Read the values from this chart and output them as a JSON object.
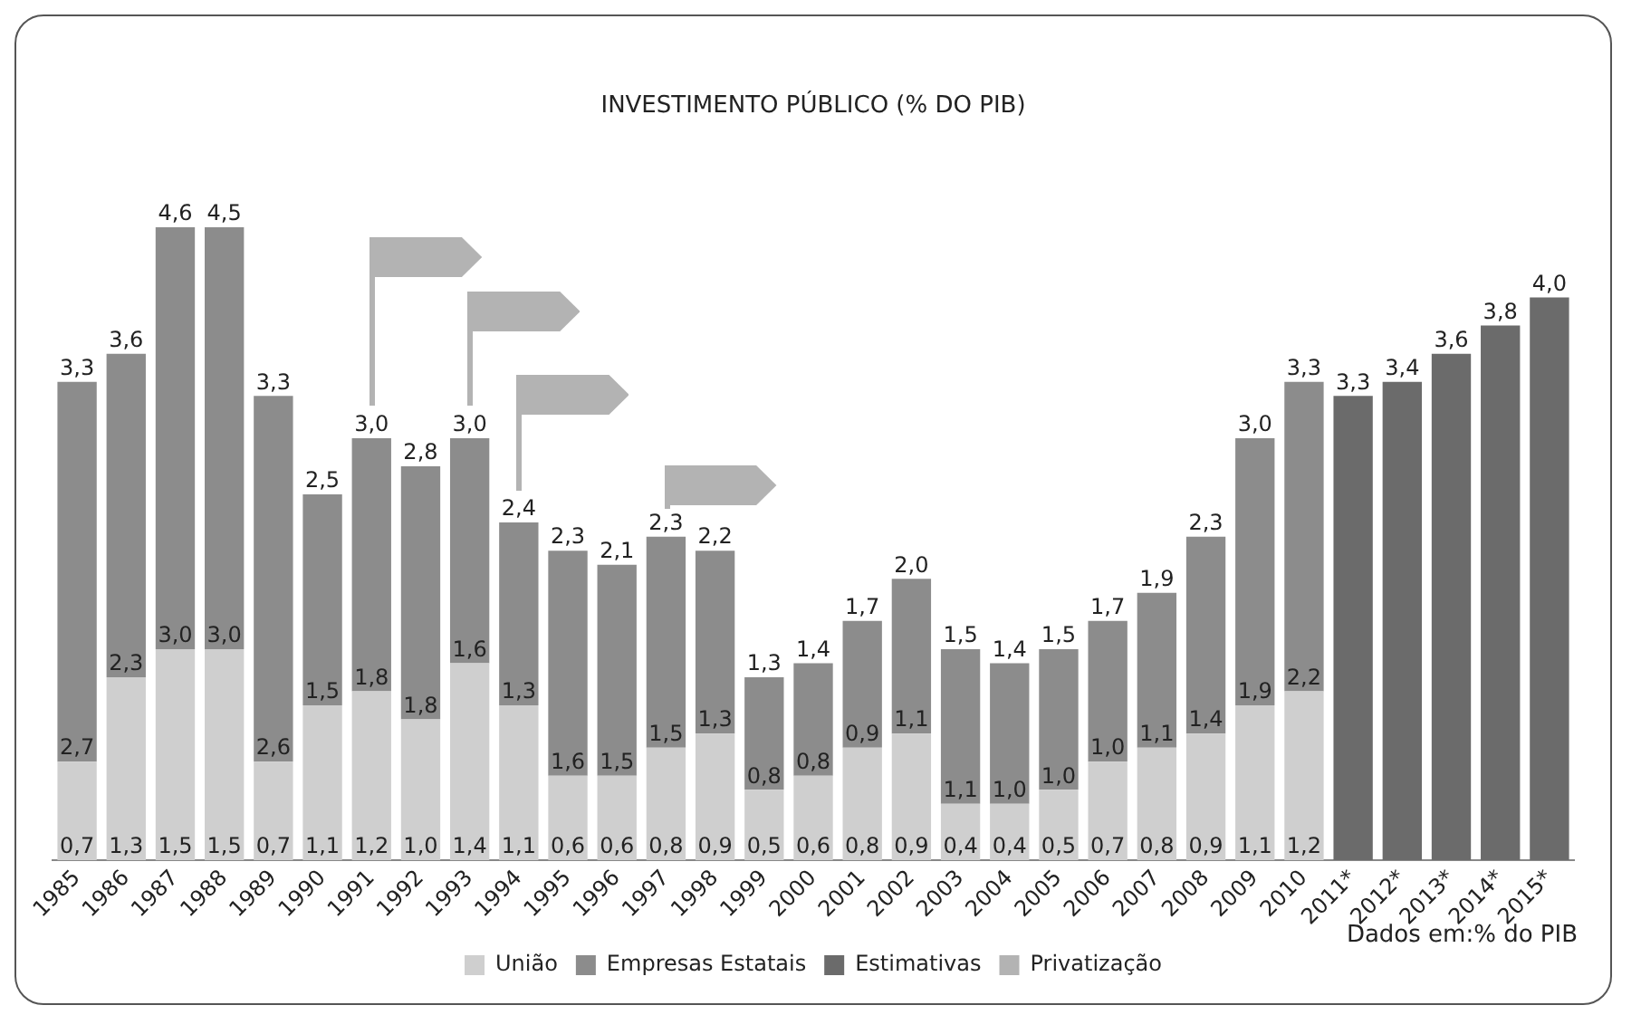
{
  "chart_data": {
    "type": "bar",
    "title": "INVESTIMENTO PÚBLICO (% DO PIB)",
    "stacked": true,
    "tick_labels": "x",
    "legend": "bottom",
    "grid": false,
    "categories": [
      "1985",
      "1986",
      "1987",
      "1988",
      "1989",
      "1990",
      "1991",
      "1992",
      "1993",
      "1994",
      "1995",
      "1996",
      "1997",
      "1998",
      "1999",
      "2000",
      "2001",
      "2002",
      "2003",
      "2004",
      "2005",
      "2006",
      "2007",
      "2008",
      "2009",
      "2010",
      "2011*",
      "2012*",
      "2013*",
      "2014*",
      "2015*"
    ],
    "series": [
      {
        "name": "União",
        "color": "#cfcfcf",
        "values": [
          0.7,
          1.3,
          1.5,
          1.5,
          0.7,
          1.1,
          1.2,
          1.0,
          1.4,
          1.1,
          0.6,
          0.6,
          0.8,
          0.9,
          0.5,
          0.6,
          0.8,
          0.9,
          0.4,
          0.4,
          0.5,
          0.7,
          0.8,
          0.9,
          1.1,
          1.2,
          null,
          null,
          null,
          null,
          null
        ],
        "value_labels": [
          "0,7",
          "1,3",
          "1,5",
          "1,5",
          "0,7",
          "1,1",
          "1,2",
          "1,0",
          "1,4",
          "1,1",
          "0,6",
          "0,6",
          "0,8",
          "0,9",
          "0,5",
          "0,6",
          "0,8",
          "0,9",
          "0,4",
          "0,4",
          "0,5",
          "0,7",
          "0,8",
          "0,9",
          "1,1",
          "1,2",
          null,
          null,
          null,
          null,
          null
        ]
      },
      {
        "name": "Empresas Estatais",
        "color": "#8c8c8c",
        "values": [
          2.7,
          2.3,
          3.0,
          3.0,
          2.6,
          1.5,
          1.8,
          1.8,
          1.6,
          1.3,
          1.6,
          1.5,
          1.5,
          1.3,
          0.8,
          0.8,
          0.9,
          1.1,
          1.1,
          1.0,
          1.0,
          1.0,
          1.1,
          1.4,
          1.9,
          2.2,
          null,
          null,
          null,
          null,
          null
        ],
        "value_labels": [
          "2,7",
          "2,3",
          "3,0",
          "3,0",
          "2,6",
          "1,5",
          "1,8",
          "1,8",
          "1,6",
          "1,3",
          "1,6",
          "1,5",
          "1,5",
          "1,3",
          "0,8",
          "0,8",
          "0,9",
          "1,1",
          "1,1",
          "1,0",
          "1,0",
          "1,0",
          "1,1",
          "1,4",
          "1,9",
          "2,2",
          null,
          null,
          null,
          null,
          null
        ]
      },
      {
        "name": "Estimativas",
        "color": "#6b6b6b",
        "values": [
          null,
          null,
          null,
          null,
          null,
          null,
          null,
          null,
          null,
          null,
          null,
          null,
          null,
          null,
          null,
          null,
          null,
          null,
          null,
          null,
          null,
          null,
          null,
          null,
          null,
          null,
          3.3,
          3.4,
          3.6,
          3.8,
          4.0
        ]
      },
      {
        "name": "Privatização",
        "color": "#b3b3b3",
        "values": [
          null,
          null,
          null,
          null,
          null,
          null,
          null,
          null,
          null,
          null,
          null,
          null,
          null,
          null,
          null,
          null,
          null,
          null,
          null,
          null,
          null,
          null,
          null,
          null,
          null,
          null,
          null,
          null,
          null,
          null,
          null
        ]
      }
    ],
    "totals": [
      "3,3",
      "3,6",
      "4,6",
      "4,5",
      "3,3",
      "2,5",
      "3,0",
      "2,8",
      "3,0",
      "2,4",
      "2,3",
      "2,1",
      "2,3",
      "2,2",
      "1,3",
      "1,4",
      "1,7",
      "2,0",
      "1,5",
      "1,4",
      "1,5",
      "1,7",
      "1,9",
      "2,3",
      "3,0",
      "3,3",
      "3,3",
      "3,4",
      "3,6",
      "3,8",
      "4,0"
    ],
    "annotations": [
      "Dados em:% do PIB"
    ]
  }
}
